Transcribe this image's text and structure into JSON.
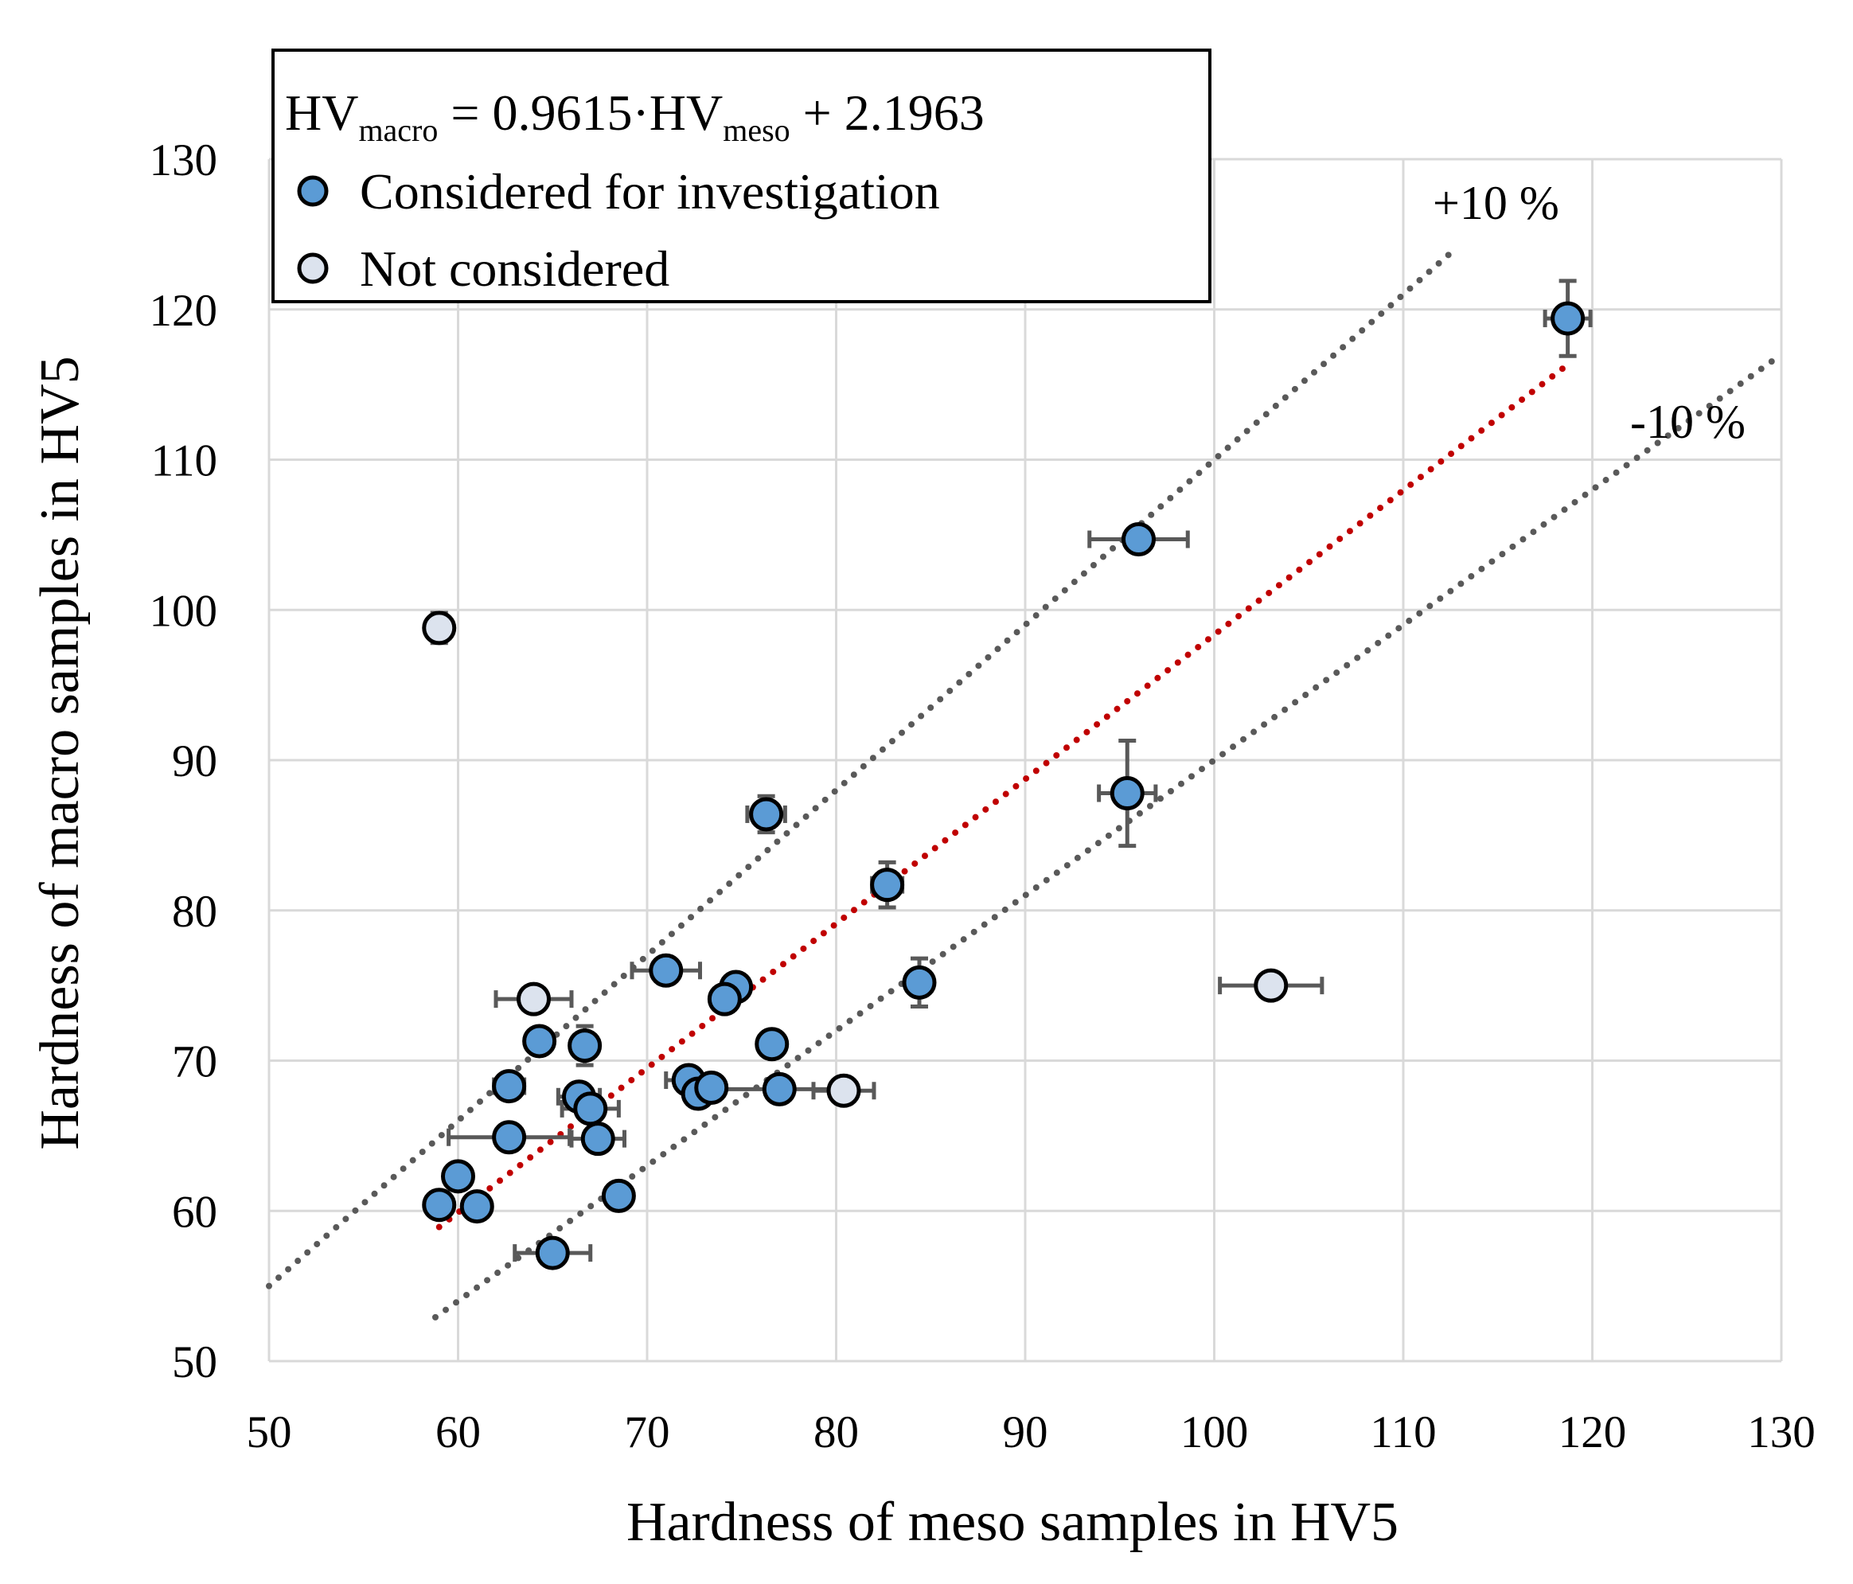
{
  "chart_data": {
    "type": "scatter",
    "xlabel": "Hardness of meso samples in HV5",
    "ylabel": "Hardness of macro samples in HV5",
    "xlim": [
      50,
      130
    ],
    "ylim": [
      50,
      130
    ],
    "xticks": [
      50,
      60,
      70,
      80,
      90,
      100,
      110,
      120,
      130
    ],
    "yticks": [
      50,
      60,
      70,
      80,
      90,
      100,
      110,
      120,
      130
    ],
    "grid": true,
    "legend": {
      "placement": "top-left",
      "equation": {
        "lhs_main": "HV",
        "lhs_sub": "macro",
        "mid_main": " = 0.9615·HV",
        "mid_sub": "meso",
        "tail": " + 2.1963"
      },
      "entries": [
        {
          "label": "Considered for investigation",
          "color": "#5b9bd5"
        },
        {
          "label": "Not considered",
          "color": "#dce3ee"
        }
      ]
    },
    "fit": {
      "slope": 0.9615,
      "intercept": 2.1963,
      "x_range": [
        59,
        118.7
      ],
      "color": "#c00000"
    },
    "bands": [
      {
        "label": "+10 %",
        "factor": 1.1,
        "x_range": [
          50,
          112.5
        ]
      },
      {
        "label": "-10 %",
        "factor": 0.9,
        "x_range": [
          58.8,
          130
        ]
      }
    ],
    "band_color": "#595959",
    "error_color": "#595959",
    "series": [
      {
        "name": "Considered for investigation",
        "color": "#5b9bd5",
        "points": [
          {
            "x": 118.7,
            "y": 119.4,
            "xerr": 1.2,
            "yerr": 2.5
          },
          {
            "x": 96.0,
            "y": 104.7,
            "xerr": 2.6,
            "yerr": 0.0
          },
          {
            "x": 95.4,
            "y": 87.8,
            "xerr": 1.5,
            "yerr": 3.5
          },
          {
            "x": 76.3,
            "y": 86.4,
            "xerr": 1.0,
            "yerr": 1.2
          },
          {
            "x": 82.7,
            "y": 81.7,
            "xerr": 0.8,
            "yerr": 1.5
          },
          {
            "x": 84.4,
            "y": 75.2,
            "xerr": 0.0,
            "yerr": 1.6
          },
          {
            "x": 71.0,
            "y": 76.0,
            "xerr": 1.8,
            "yerr": 0.0
          },
          {
            "x": 74.7,
            "y": 74.9,
            "xerr": 0.0,
            "yerr": 0.0
          },
          {
            "x": 74.1,
            "y": 74.1,
            "xerr": 0.0,
            "yerr": 0.0
          },
          {
            "x": 76.6,
            "y": 71.1,
            "xerr": 0.0,
            "yerr": 0.8
          },
          {
            "x": 64.3,
            "y": 71.3,
            "xerr": 0.0,
            "yerr": 0.0
          },
          {
            "x": 66.7,
            "y": 71.0,
            "xerr": 0.0,
            "yerr": 1.3
          },
          {
            "x": 62.7,
            "y": 68.3,
            "xerr": 0.8,
            "yerr": 0.0
          },
          {
            "x": 72.2,
            "y": 68.7,
            "xerr": 1.2,
            "yerr": 0.0
          },
          {
            "x": 72.7,
            "y": 67.8,
            "xerr": 0.0,
            "yerr": 0.0
          },
          {
            "x": 73.4,
            "y": 68.2,
            "xerr": 0.0,
            "yerr": 0.0
          },
          {
            "x": 77.0,
            "y": 68.1,
            "xerr": 3.5,
            "yerr": 0.0
          },
          {
            "x": 66.4,
            "y": 67.6,
            "xerr": 1.1,
            "yerr": 0.0
          },
          {
            "x": 67.0,
            "y": 66.8,
            "xerr": 1.5,
            "yerr": 0.0
          },
          {
            "x": 62.7,
            "y": 64.9,
            "xerr": 3.2,
            "yerr": 0.0
          },
          {
            "x": 67.4,
            "y": 64.8,
            "xerr": 1.4,
            "yerr": 0.0
          },
          {
            "x": 60.0,
            "y": 62.3,
            "xerr": 0.0,
            "yerr": 0.0
          },
          {
            "x": 68.5,
            "y": 61.0,
            "xerr": 0.0,
            "yerr": 0.0
          },
          {
            "x": 59.0,
            "y": 60.4,
            "xerr": 0.0,
            "yerr": 0.0
          },
          {
            "x": 61.0,
            "y": 60.3,
            "xerr": 0.0,
            "yerr": 0.0
          },
          {
            "x": 65.0,
            "y": 57.2,
            "xerr": 2.0,
            "yerr": 0.0
          }
        ]
      },
      {
        "name": "Not considered",
        "color": "#dce3ee",
        "points": [
          {
            "x": 59.0,
            "y": 98.8,
            "xerr": 0.0,
            "yerr": 1.0
          },
          {
            "x": 64.0,
            "y": 74.1,
            "xerr": 2.0,
            "yerr": 0.0
          },
          {
            "x": 103.0,
            "y": 75.0,
            "xerr": 2.7,
            "yerr": 0.0
          },
          {
            "x": 80.4,
            "y": 68.0,
            "xerr": 1.6,
            "yerr": 0.0
          }
        ]
      }
    ]
  }
}
